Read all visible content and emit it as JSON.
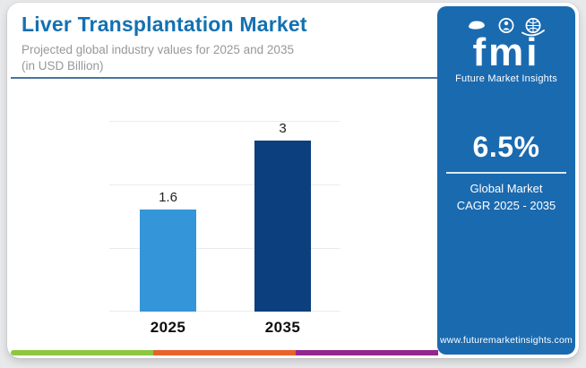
{
  "header": {
    "title": "Liver Transplantation Market",
    "subtitle_line1": "Projected global industry values for 2025 and 2035",
    "subtitle_line2": "(in USD Billion)"
  },
  "chart_data": {
    "type": "bar",
    "categories": [
      "2025",
      "2035"
    ],
    "values": [
      1.6,
      3
    ],
    "value_labels": [
      "1.6",
      "3"
    ],
    "series": [
      {
        "name": "Projected global industry value (USD Billion)",
        "values": [
          1.6,
          3
        ]
      }
    ],
    "bar_colors": [
      "#3496d8",
      "#0c3f7d"
    ],
    "title": "Liver Transplantation Market",
    "subtitle": "Projected global industry values for 2025 and 2035 (in USD Billion)",
    "xlabel": "",
    "ylabel": "",
    "ylim": [
      0,
      3
    ],
    "gridlines": [
      0,
      1,
      2,
      3
    ],
    "grid": "horizontal",
    "legend": "none"
  },
  "sidebar": {
    "logo": {
      "text": "fmi",
      "subtext": "Future Market Insights",
      "icons": [
        "map-icon",
        "person-icon",
        "globe-icon"
      ]
    },
    "cagr": {
      "value": "6.5%",
      "label_line1": "Global Market",
      "label_line2": "CAGR 2025 - 2035"
    },
    "website": "www.futuremarketinsights.com"
  },
  "footer_stripe": {
    "colors": [
      "#8dc63f",
      "#e8622a",
      "#92278f"
    ]
  },
  "colors": {
    "page_background": "#e8e9eb",
    "card_background": "#ffffff",
    "title": "#1371b1",
    "subtitle": "#96989b",
    "header_divider": "#4a739f",
    "panel_background": "#1a6ab0",
    "bar_2025": "#3496d8",
    "bar_2035": "#0c3f7d",
    "gridline": "#e9ecef"
  }
}
